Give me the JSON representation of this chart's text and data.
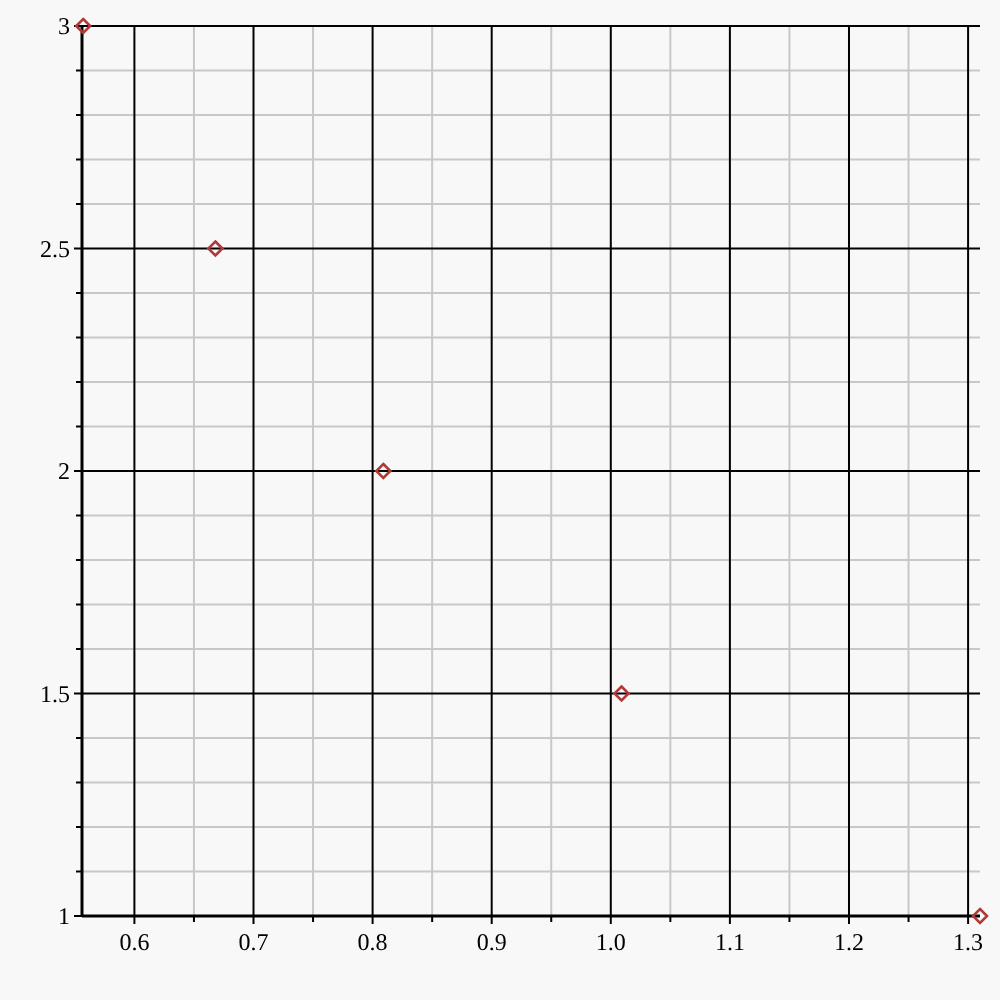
{
  "chart_data": {
    "type": "scatter",
    "x": [
      0.557,
      0.668,
      0.809,
      1.009,
      1.31
    ],
    "series": [
      {
        "color": "#b03a3a",
        "values": [
          3,
          2.5,
          2,
          1.5,
          1
        ]
      }
    ],
    "xlim": [
      0.556,
      1.31
    ],
    "ylim": [
      1,
      3
    ],
    "xticks": [
      {
        "value": 0.6,
        "label": "0.6"
      },
      {
        "value": 0.7,
        "label": "0.7"
      },
      {
        "value": 0.8,
        "label": "0.8"
      },
      {
        "value": 0.9,
        "label": "0.9"
      },
      {
        "value": 1.0,
        "label": "1.0"
      },
      {
        "value": 1.1,
        "label": "1.1"
      },
      {
        "value": 1.2,
        "label": "1.2"
      },
      {
        "value": 1.3,
        "label": "1.3"
      }
    ],
    "yticks": [
      1,
      1.5,
      2,
      2.5,
      3
    ],
    "grid": true,
    "marker": "diamond"
  }
}
